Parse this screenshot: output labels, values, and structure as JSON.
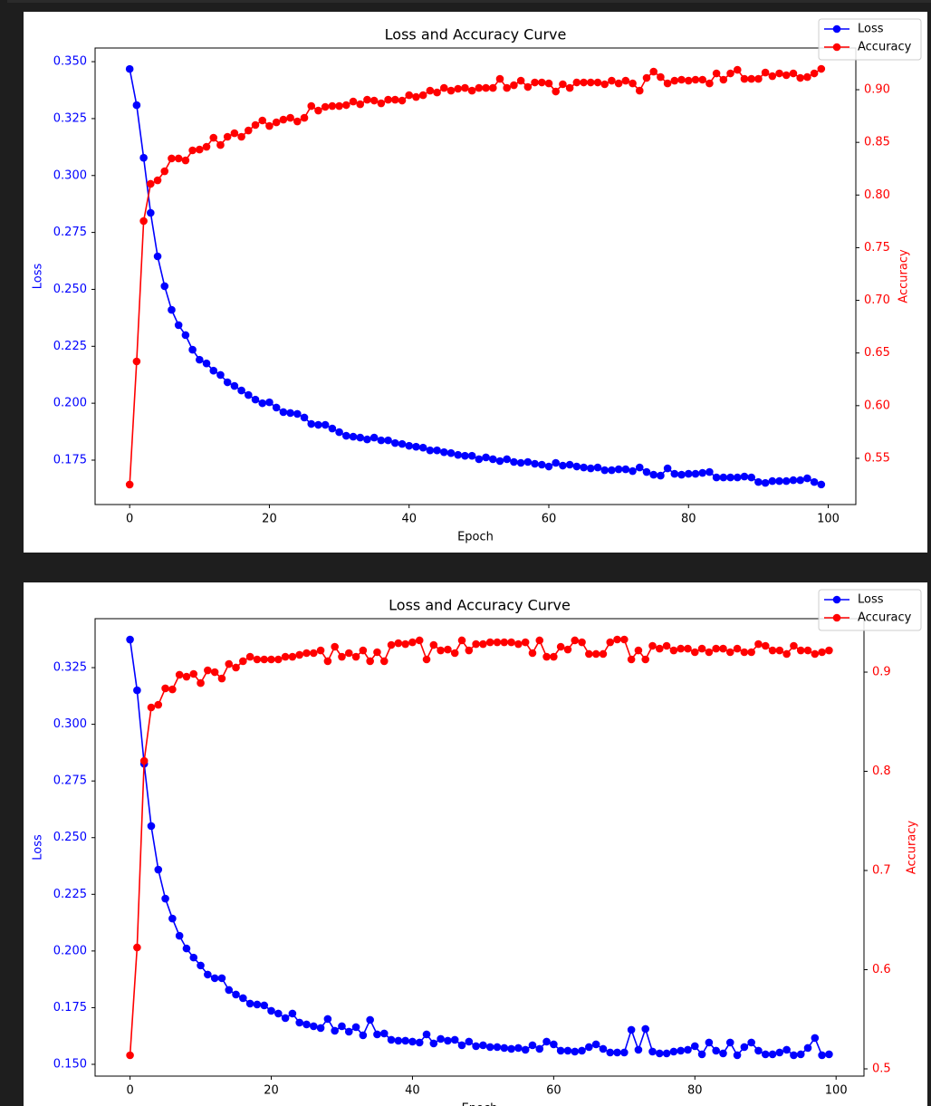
{
  "chart_data": [
    {
      "type": "line",
      "title": "Loss and Accuracy Curve",
      "xlabel": "Epoch",
      "ylabel": "Loss",
      "y2label": "Accuracy",
      "legend": "upper right",
      "grid": false,
      "x": [
        0,
        1,
        2,
        3,
        4,
        5,
        6,
        7,
        8,
        9,
        10,
        11,
        12,
        13,
        14,
        15,
        16,
        17,
        18,
        19,
        20,
        21,
        22,
        23,
        24,
        25,
        26,
        27,
        28,
        29,
        30,
        31,
        32,
        33,
        34,
        35,
        36,
        37,
        38,
        39,
        40,
        41,
        42,
        43,
        44,
        45,
        46,
        47,
        48,
        49,
        50,
        51,
        52,
        53,
        54,
        55,
        56,
        57,
        58,
        59,
        60,
        61,
        62,
        63,
        64,
        65,
        66,
        67,
        68,
        69,
        70,
        71,
        72,
        73,
        74,
        75,
        76,
        77,
        78,
        79,
        80,
        81,
        82,
        83,
        84,
        85,
        86,
        87,
        88,
        89,
        90,
        91,
        92,
        93,
        94,
        95,
        96,
        97,
        98,
        99
      ],
      "xlim": [
        -4.95,
        103.95
      ],
      "xticks": [
        0,
        20,
        40,
        60,
        80,
        100
      ],
      "ylim": [
        0.1555,
        0.356
      ],
      "yticks": [
        0.175,
        {
          "value": 0.2,
          "label": "0.200"
        },
        0.225,
        {
          "value": 0.25,
          "label": "0.250"
        },
        0.275,
        {
          "value": 0.3,
          "label": "0.300"
        },
        0.325,
        {
          "value": 0.35,
          "label": "0.350"
        }
      ],
      "y2lim": [
        0.5061,
        0.9396
      ],
      "y2ticks": [
        0.55,
        {
          "value": 0.6,
          "label": "0.60"
        },
        0.65,
        {
          "value": 0.7,
          "label": "0.70"
        },
        0.75,
        {
          "value": 0.8,
          "label": "0.80"
        },
        0.85,
        {
          "value": 0.9,
          "label": "0.90"
        }
      ],
      "series": [
        {
          "name": "Loss",
          "color": "#0000ff",
          "axis": "y",
          "values": [
            0.3468,
            0.3309,
            0.3078,
            0.2836,
            0.2645,
            0.2514,
            0.241,
            0.2343,
            0.2299,
            0.2235,
            0.2191,
            0.2175,
            0.2143,
            0.2124,
            0.2092,
            0.2076,
            0.2056,
            0.2036,
            0.2016,
            0.2,
            0.2004,
            0.1981,
            0.1961,
            0.1957,
            0.1953,
            0.1937,
            0.1909,
            0.1905,
            0.1905,
            0.1889,
            0.1873,
            0.1857,
            0.1853,
            0.1849,
            0.1841,
            0.1849,
            0.1837,
            0.1837,
            0.1825,
            0.1821,
            0.1813,
            0.1809,
            0.1805,
            0.1793,
            0.1793,
            0.1785,
            0.1781,
            0.1773,
            0.1769,
            0.1769,
            0.1754,
            0.1762,
            0.1754,
            0.1746,
            0.1754,
            0.1742,
            0.1738,
            0.1742,
            0.1734,
            0.173,
            0.1722,
            0.1738,
            0.1726,
            0.173,
            0.1722,
            0.1718,
            0.1714,
            0.1718,
            0.1706,
            0.1706,
            0.171,
            0.171,
            0.1702,
            0.1718,
            0.1698,
            0.1686,
            0.1682,
            0.1714,
            0.169,
            0.1686,
            0.169,
            0.169,
            0.1694,
            0.1698,
            0.1674,
            0.1674,
            0.1674,
            0.1674,
            0.1678,
            0.1674,
            0.1654,
            0.165,
            0.1658,
            0.1658,
            0.1658,
            0.1662,
            0.1662,
            0.167,
            0.1654,
            0.1643
          ]
        },
        {
          "name": "Accuracy",
          "color": "#ff0000",
          "axis": "y2",
          "values": [
            0.5251,
            0.642,
            0.7753,
            0.8106,
            0.814,
            0.8226,
            0.8347,
            0.8347,
            0.8329,
            0.8424,
            0.8432,
            0.8458,
            0.8544,
            0.8475,
            0.8553,
            0.8587,
            0.8553,
            0.8613,
            0.8665,
            0.8708,
            0.8656,
            0.869,
            0.8716,
            0.8733,
            0.8699,
            0.8733,
            0.8845,
            0.8802,
            0.8837,
            0.8845,
            0.8845,
            0.8854,
            0.8888,
            0.8862,
            0.8905,
            0.8897,
            0.8871,
            0.8905,
            0.8905,
            0.8897,
            0.8948,
            0.8931,
            0.8948,
            0.8991,
            0.8974,
            0.9017,
            0.8991,
            0.9009,
            0.9017,
            0.8991,
            0.9017,
            0.9017,
            0.9017,
            0.9103,
            0.9017,
            0.9043,
            0.9086,
            0.9026,
            0.9069,
            0.9069,
            0.906,
            0.8983,
            0.9052,
            0.9017,
            0.9069,
            0.9069,
            0.9069,
            0.9069,
            0.9052,
            0.9086,
            0.906,
            0.9086,
            0.906,
            0.8991,
            0.9112,
            0.9172,
            0.912,
            0.906,
            0.9086,
            0.9095,
            0.9086,
            0.9095,
            0.9095,
            0.906,
            0.9155,
            0.9095,
            0.9155,
            0.9189,
            0.9103,
            0.9103,
            0.9103,
            0.9163,
            0.9129,
            0.9155,
            0.9138,
            0.9155,
            0.9112,
            0.912,
            0.9155,
            0.9198
          ]
        }
      ]
    },
    {
      "type": "line",
      "title": "Loss and Accuracy Curve",
      "xlabel": "Epoch",
      "ylabel": "Loss",
      "y2label": "Accuracy",
      "legend": "upper right",
      "grid": false,
      "x": [
        0,
        1,
        2,
        3,
        4,
        5,
        6,
        7,
        8,
        9,
        10,
        11,
        12,
        13,
        14,
        15,
        16,
        17,
        18,
        19,
        20,
        21,
        22,
        23,
        24,
        25,
        26,
        27,
        28,
        29,
        30,
        31,
        32,
        33,
        34,
        35,
        36,
        37,
        38,
        39,
        40,
        41,
        42,
        43,
        44,
        45,
        46,
        47,
        48,
        49,
        50,
        51,
        52,
        53,
        54,
        55,
        56,
        57,
        58,
        59,
        60,
        61,
        62,
        63,
        64,
        65,
        66,
        67,
        68,
        69,
        70,
        71,
        72,
        73,
        74,
        75,
        76,
        77,
        78,
        79,
        80,
        81,
        82,
        83,
        84,
        85,
        86,
        87,
        88,
        89,
        90,
        91,
        92,
        93,
        94,
        95,
        96,
        97,
        98,
        99
      ],
      "xlim": [
        -4.95,
        103.95
      ],
      "xticks": [
        0,
        20,
        40,
        60,
        80,
        100
      ],
      "ylim": [
        0.1448,
        0.3466
      ],
      "yticks": [
        {
          "value": 0.15,
          "label": "0.150"
        },
        0.175,
        {
          "value": 0.2,
          "label": "0.200"
        },
        0.225,
        {
          "value": 0.25,
          "label": "0.250"
        },
        0.275,
        {
          "value": 0.3,
          "label": "0.300"
        },
        0.325
      ],
      "y2lim": [
        0.4927,
        0.9539
      ],
      "y2ticks": [
        0.5,
        0.6,
        0.7,
        0.8,
        0.9
      ],
      "series": [
        {
          "name": "Loss",
          "color": "#0000ff",
          "axis": "y",
          "values": [
            0.3374,
            0.315,
            0.2826,
            0.2551,
            0.2359,
            0.2231,
            0.2143,
            0.2067,
            0.2011,
            0.1971,
            0.1936,
            0.1896,
            0.188,
            0.188,
            0.1828,
            0.1808,
            0.1792,
            0.1768,
            0.1764,
            0.176,
            0.1736,
            0.1724,
            0.1704,
            0.1724,
            0.1684,
            0.1676,
            0.1668,
            0.166,
            0.17,
            0.1648,
            0.1668,
            0.1644,
            0.1664,
            0.1628,
            0.1696,
            0.1632,
            0.1636,
            0.1608,
            0.1604,
            0.1604,
            0.16,
            0.1596,
            0.1632,
            0.1592,
            0.1612,
            0.1604,
            0.1608,
            0.1584,
            0.16,
            0.158,
            0.1584,
            0.1576,
            0.1576,
            0.1572,
            0.1568,
            0.1572,
            0.1564,
            0.1584,
            0.1568,
            0.16,
            0.1588,
            0.156,
            0.156,
            0.1556,
            0.156,
            0.1576,
            0.1588,
            0.1568,
            0.1552,
            0.1552,
            0.1552,
            0.1652,
            0.1564,
            0.1656,
            0.1556,
            0.1548,
            0.1548,
            0.1556,
            0.156,
            0.1564,
            0.158,
            0.1544,
            0.1596,
            0.156,
            0.1548,
            0.1596,
            0.154,
            0.1576,
            0.1596,
            0.156,
            0.1544,
            0.1544,
            0.1552,
            0.1564,
            0.154,
            0.1544,
            0.1572,
            0.1616,
            0.154,
            0.1544
          ]
        },
        {
          "name": "Accuracy",
          "color": "#ff0000",
          "axis": "y2",
          "values": [
            0.5137,
            0.6224,
            0.8105,
            0.8644,
            0.8671,
            0.8836,
            0.8826,
            0.8973,
            0.8954,
            0.8982,
            0.889,
            0.9018,
            0.9,
            0.8936,
            0.9082,
            0.9046,
            0.911,
            0.9155,
            0.9128,
            0.9128,
            0.9128,
            0.9128,
            0.9155,
            0.9155,
            0.9174,
            0.9192,
            0.9192,
            0.9219,
            0.911,
            0.9256,
            0.9155,
            0.9192,
            0.9155,
            0.9219,
            0.911,
            0.9201,
            0.911,
            0.9274,
            0.9292,
            0.9283,
            0.9301,
            0.932,
            0.9128,
            0.9274,
            0.9219,
            0.9228,
            0.9192,
            0.932,
            0.9219,
            0.9283,
            0.9283,
            0.9301,
            0.9301,
            0.9301,
            0.9301,
            0.9283,
            0.9301,
            0.9192,
            0.932,
            0.9155,
            0.9155,
            0.9256,
            0.9228,
            0.932,
            0.9301,
            0.9183,
            0.9183,
            0.9183,
            0.9301,
            0.9329,
            0.9329,
            0.9128,
            0.9219,
            0.9128,
            0.9265,
            0.9237,
            0.9265,
            0.9219,
            0.9237,
            0.9237,
            0.9201,
            0.9237,
            0.9201,
            0.9237,
            0.9237,
            0.9201,
            0.9237,
            0.9201,
            0.9201,
            0.9283,
            0.9265,
            0.9219,
            0.9219,
            0.9183,
            0.9265,
            0.9219,
            0.9219,
            0.9183,
            0.9201,
            0.9219
          ]
        }
      ]
    }
  ]
}
